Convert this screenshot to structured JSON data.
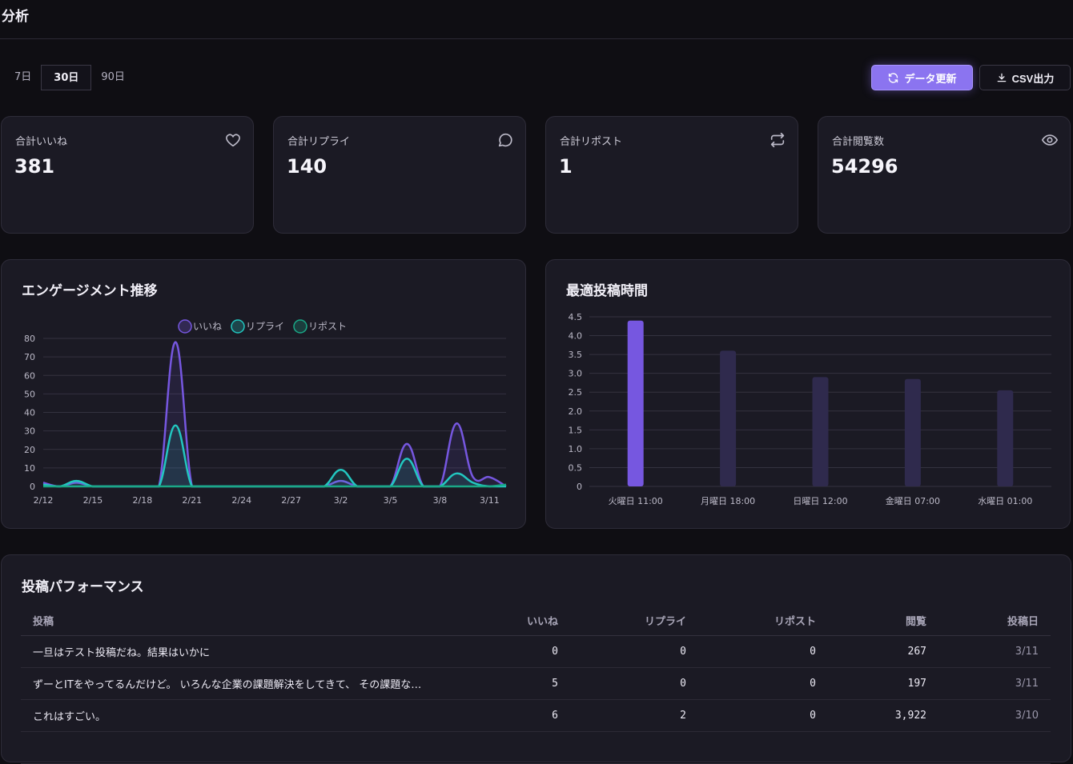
{
  "header": {
    "title": "分析"
  },
  "range": {
    "options": [
      "7日",
      "30日",
      "90日"
    ],
    "selected": "30日"
  },
  "toolbar": {
    "refresh_label": "データ更新",
    "csv_label": "CSV出力"
  },
  "stats": [
    {
      "label": "合計いいね",
      "value": "381",
      "icon": "heart-icon"
    },
    {
      "label": "合計リプライ",
      "value": "140",
      "icon": "comment-icon"
    },
    {
      "label": "合計リポスト",
      "value": "1",
      "icon": "repost-icon"
    },
    {
      "label": "合計閲覧数",
      "value": "54296",
      "icon": "eye-icon"
    }
  ],
  "colors": {
    "accent": "#8b74f0",
    "likes": "#7657e0",
    "replies": "#22c7c0",
    "reposts": "#1aa887",
    "bar_top": "#7657e0",
    "bar_other": "#2f2a4d"
  },
  "engagement": {
    "title": "エンゲージメント推移",
    "chart_data": {
      "type": "line",
      "x_ticks": [
        "2/12",
        "2/15",
        "2/18",
        "2/21",
        "2/24",
        "2/27",
        "3/2",
        "3/5",
        "3/8",
        "3/11"
      ],
      "y_ticks": [
        0,
        10,
        20,
        30,
        40,
        50,
        60,
        70,
        80
      ],
      "ylim": [
        0,
        80
      ],
      "x": [
        "2/12",
        "2/13",
        "2/14",
        "2/15",
        "2/16",
        "2/17",
        "2/18",
        "2/19",
        "2/20",
        "2/21",
        "2/22",
        "2/23",
        "2/24",
        "2/25",
        "2/26",
        "2/27",
        "2/28",
        "3/1",
        "3/2",
        "3/3",
        "3/4",
        "3/5",
        "3/6",
        "3/7",
        "3/8",
        "3/9",
        "3/10",
        "3/11",
        "3/12"
      ],
      "series": [
        {
          "name": "いいね",
          "values": [
            2,
            0,
            2,
            0,
            0,
            0,
            0,
            0,
            78,
            0,
            0,
            0,
            0,
            0,
            0,
            0,
            0,
            0,
            3,
            0,
            0,
            0,
            23,
            0,
            0,
            34,
            5,
            5,
            0
          ]
        },
        {
          "name": "リプライ",
          "values": [
            1,
            0,
            3,
            0,
            0,
            0,
            0,
            0,
            33,
            0,
            0,
            0,
            0,
            0,
            0,
            0,
            0,
            0,
            9,
            0,
            0,
            0,
            15,
            0,
            0,
            7,
            2,
            0,
            0
          ]
        },
        {
          "name": "リポスト",
          "values": [
            0,
            0,
            0,
            0,
            0,
            0,
            0,
            0,
            0,
            0,
            0,
            0,
            0,
            0,
            0,
            0,
            0,
            0,
            0,
            0,
            0,
            0,
            0,
            0,
            0,
            0,
            0,
            0,
            1
          ]
        }
      ]
    }
  },
  "best_time": {
    "title": "最適投稿時間",
    "chart_data": {
      "type": "bar",
      "categories": [
        "火曜日 11:00",
        "月曜日 18:00",
        "日曜日 12:00",
        "金曜日 07:00",
        "水曜日 01:00"
      ],
      "values": [
        4.4,
        3.6,
        2.9,
        2.85,
        2.55
      ],
      "y_ticks": [
        "0",
        "0.5",
        "1.0",
        "1.5",
        "2.0",
        "2.5",
        "3.0",
        "3.5",
        "4.0",
        "4.5"
      ],
      "ylim": [
        0,
        4.5
      ]
    }
  },
  "posts": {
    "title": "投稿パフォーマンス",
    "columns": [
      "投稿",
      "いいね",
      "リプライ",
      "リポスト",
      "閲覧",
      "投稿日"
    ],
    "rows": [
      {
        "text": "一旦はテスト投稿だね。結果はいかに",
        "likes": "0",
        "replies": "0",
        "reposts": "0",
        "views": "267",
        "date": "3/11"
      },
      {
        "text": "ずーとITをやってるんだけど。 いろんな企業の課題解決をしてきて、 その課題な…",
        "likes": "5",
        "replies": "0",
        "reposts": "0",
        "views": "197",
        "date": "3/11"
      },
      {
        "text": "これはすごい。",
        "likes": "6",
        "replies": "2",
        "reposts": "0",
        "views": "3,922",
        "date": "3/10"
      },
      {
        "text": "",
        "likes": "",
        "replies": "",
        "reposts": "",
        "views": "",
        "date": ""
      }
    ]
  }
}
